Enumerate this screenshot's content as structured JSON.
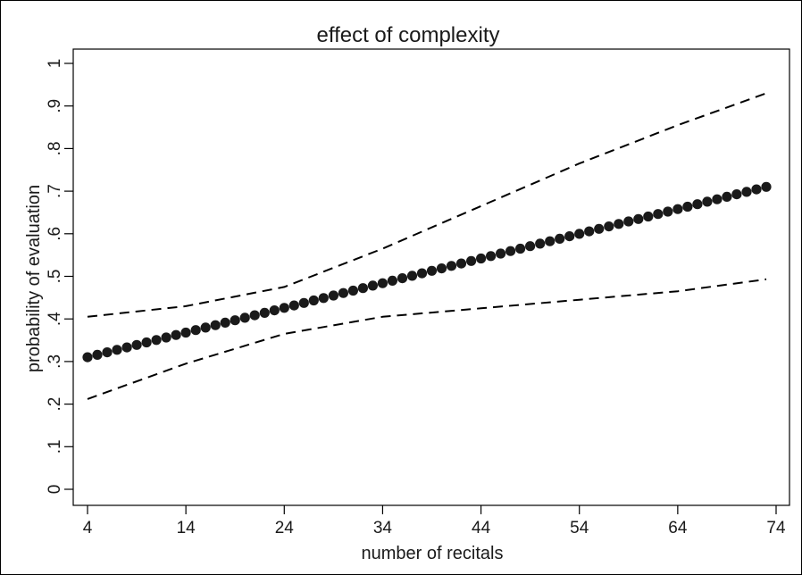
{
  "chart_data": {
    "type": "line",
    "title": "effect of complexity",
    "xlabel": "number of recitals",
    "ylabel": "probability of evaluation",
    "xlim": [
      4,
      74
    ],
    "ylim": [
      0,
      1
    ],
    "xticks": [
      4,
      14,
      24,
      34,
      44,
      54,
      64,
      74
    ],
    "xtick_labels": [
      "4",
      "14",
      "24",
      "34",
      "44",
      "54",
      "64",
      "74"
    ],
    "yticks": [
      0,
      0.1,
      0.2,
      0.3,
      0.4,
      0.5,
      0.6,
      0.7,
      0.8,
      0.9,
      1
    ],
    "ytick_labels": [
      "0",
      ".1",
      ".2",
      ".3",
      ".4",
      ".5",
      ".6",
      ".7",
      ".8",
      ".9",
      "1"
    ],
    "grid": false,
    "legend": "none",
    "series": [
      {
        "style": "markers",
        "color": "#1a1a1a",
        "x": [
          4,
          73
        ],
        "y": [
          0.31,
          0.71
        ],
        "n_points": 70
      },
      {
        "style": "dashed",
        "color": "#000000",
        "x": [
          4,
          14,
          24,
          34,
          44,
          54,
          64,
          73
        ],
        "y": [
          0.405,
          0.43,
          0.475,
          0.565,
          0.665,
          0.765,
          0.855,
          0.93
        ]
      },
      {
        "style": "dashed",
        "color": "#000000",
        "x": [
          4,
          14,
          24,
          34,
          44,
          54,
          64,
          73
        ],
        "y": [
          0.212,
          0.295,
          0.365,
          0.405,
          0.425,
          0.445,
          0.465,
          0.493
        ]
      }
    ]
  }
}
